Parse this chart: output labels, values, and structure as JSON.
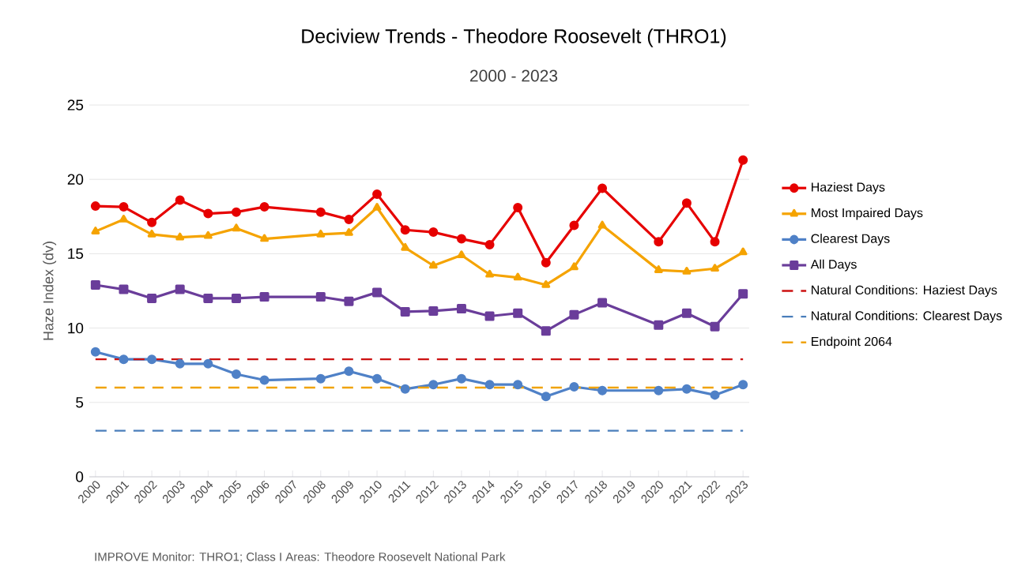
{
  "chart_data": {
    "type": "line",
    "title": "Deciview Trends - Theodore Roosevelt (THRO1)",
    "subtitle": "2000 - 2023",
    "ylabel": "Haze Index (dv)",
    "categories": [
      "2000",
      "2001",
      "2002",
      "2003",
      "2004",
      "2005",
      "2006",
      "2007",
      "2008",
      "2009",
      "2010",
      "2011",
      "2012",
      "2013",
      "2014",
      "2015",
      "2016",
      "2017",
      "2018",
      "2019",
      "2020",
      "2021",
      "2022",
      "2023"
    ],
    "series": [
      {
        "name": "Haziest Days",
        "color": "#e60000",
        "marker": "circle",
        "values": [
          18.2,
          18.15,
          17.1,
          18.6,
          17.7,
          17.8,
          18.15,
          null,
          17.8,
          17.3,
          19.0,
          16.6,
          16.45,
          16.0,
          15.6,
          18.1,
          14.4,
          16.9,
          19.4,
          null,
          15.8,
          18.4,
          15.8,
          21.3
        ]
      },
      {
        "name": "Most Impaired Days",
        "color": "#f5a300",
        "marker": "triangle",
        "values": [
          16.5,
          17.3,
          16.3,
          16.1,
          16.2,
          16.7,
          16.0,
          null,
          16.3,
          16.4,
          18.1,
          15.4,
          14.2,
          14.9,
          13.6,
          13.4,
          12.9,
          14.1,
          16.9,
          null,
          13.9,
          13.8,
          14.0,
          15.1
        ]
      },
      {
        "name": "Clearest Days",
        "color": "#4f81c7",
        "marker": "circle",
        "values": [
          8.4,
          7.9,
          7.9,
          7.6,
          7.6,
          6.9,
          6.5,
          null,
          6.6,
          7.1,
          6.6,
          5.9,
          6.2,
          6.6,
          6.2,
          6.2,
          5.4,
          6.05,
          5.8,
          null,
          5.8,
          5.9,
          5.5,
          6.2
        ]
      },
      {
        "name": "All Days",
        "color": "#6a3d9a",
        "marker": "square",
        "values": [
          12.9,
          12.6,
          12.0,
          12.6,
          12.0,
          12.0,
          12.1,
          null,
          12.1,
          11.8,
          12.4,
          11.1,
          11.15,
          11.3,
          10.8,
          11.0,
          9.8,
          10.9,
          11.7,
          null,
          10.2,
          11.0,
          10.1,
          12.3
        ]
      }
    ],
    "ref_lines": [
      {
        "axis": "y",
        "value": 7.9,
        "label": "Natural Conditions: Haziest Days",
        "color": "#cc1111",
        "line_style": "dashed"
      },
      {
        "axis": "y",
        "value": 3.1,
        "label": "Natural Conditions: Clearest Days",
        "color": "#4a7ebb",
        "line_style": "dashed"
      },
      {
        "axis": "y",
        "value": 6.0,
        "label": "Endpoint 2064",
        "color": "#f0a30a",
        "line_style": "dashed"
      }
    ],
    "ylim": [
      0,
      25
    ],
    "yticks": [
      0,
      5,
      10,
      15,
      20,
      25
    ],
    "grid": "y",
    "legend": "right",
    "line_style": "solid",
    "annotations": [
      "IMPROVE Monitor: THRO1; Class I Areas: Theodore Roosevelt National Park"
    ]
  }
}
